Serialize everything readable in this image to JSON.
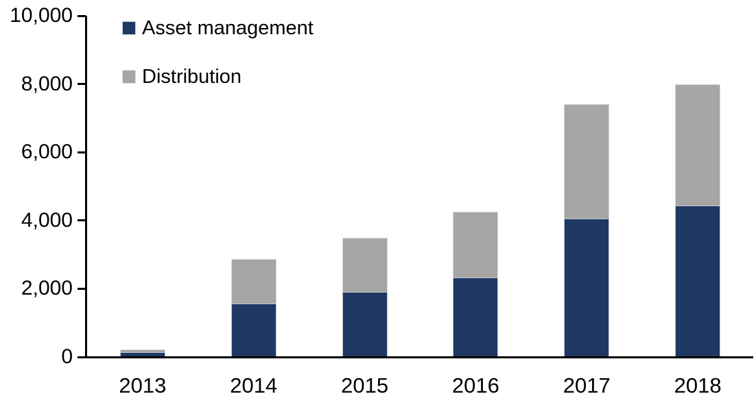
{
  "chart_data": {
    "type": "bar",
    "stacked": true,
    "title": "",
    "xlabel": "",
    "ylabel": "",
    "categories": [
      "2013",
      "2014",
      "2015",
      "2016",
      "2017",
      "2018"
    ],
    "series": [
      {
        "name": "Asset management",
        "color": "#1F3864",
        "values": [
          140,
          1560,
          1900,
          2330,
          4060,
          4430
        ]
      },
      {
        "name": "Distribution",
        "color": "#A6A6A6",
        "values": [
          90,
          1320,
          1600,
          1930,
          3340,
          3570
        ]
      }
    ],
    "stacked_totals": [
      230,
      2880,
      3500,
      4260,
      7400,
      8000
    ],
    "ylim": [
      0,
      10000
    ],
    "yticks": [
      {
        "value": 0,
        "label": "0"
      },
      {
        "value": 2000,
        "label": "2,000"
      },
      {
        "value": 4000,
        "label": "4,000"
      },
      {
        "value": 6000,
        "label": "6,000"
      },
      {
        "value": 8000,
        "label": "8,000"
      },
      {
        "value": 10000,
        "label": "10,000"
      }
    ],
    "grid": false,
    "legend_position": "top-left"
  },
  "legend": {
    "items": [
      {
        "label": "Asset management",
        "color": "#1F3864"
      },
      {
        "label": "Distribution",
        "color": "#A6A6A6"
      }
    ]
  },
  "colors": {
    "axis": "#000000",
    "text": "#000000",
    "background": "#FFFFFF"
  }
}
